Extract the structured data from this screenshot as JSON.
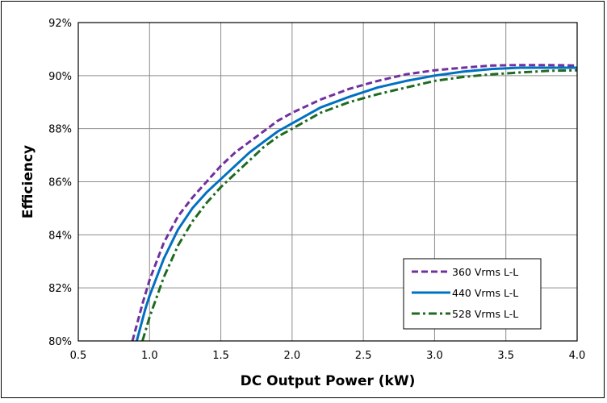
{
  "chart_data": {
    "type": "line",
    "title": "",
    "xlabel": "DC Output Power (kW)",
    "ylabel": "Efficiency",
    "xlim": [
      0.5,
      4.0
    ],
    "ylim": [
      80,
      92
    ],
    "x_ticks": [
      "0.5",
      "1.0",
      "1.5",
      "2.0",
      "2.5",
      "3.0",
      "3.5",
      "4.0"
    ],
    "y_ticks": [
      "80%",
      "82%",
      "84%",
      "86%",
      "88%",
      "90%",
      "92%"
    ],
    "grid": true,
    "legend_position": "bottom-right",
    "series": [
      {
        "name": "360 Vrms L-L",
        "color": "#7030A0",
        "dash": "dashed",
        "points": [
          [
            0.88,
            80.0
          ],
          [
            0.95,
            81.4
          ],
          [
            1.0,
            82.3
          ],
          [
            1.1,
            83.7
          ],
          [
            1.2,
            84.7
          ],
          [
            1.3,
            85.4
          ],
          [
            1.4,
            86.0
          ],
          [
            1.5,
            86.6
          ],
          [
            1.6,
            87.1
          ],
          [
            1.7,
            87.5
          ],
          [
            1.8,
            87.9
          ],
          [
            1.9,
            88.3
          ],
          [
            2.0,
            88.6
          ],
          [
            2.2,
            89.1
          ],
          [
            2.4,
            89.5
          ],
          [
            2.6,
            89.8
          ],
          [
            2.8,
            90.05
          ],
          [
            3.0,
            90.2
          ],
          [
            3.2,
            90.3
          ],
          [
            3.4,
            90.38
          ],
          [
            3.6,
            90.4
          ],
          [
            3.8,
            90.4
          ],
          [
            4.0,
            90.38
          ]
        ]
      },
      {
        "name": "440 Vrms L-L",
        "color": "#0070C0",
        "dash": "solid",
        "points": [
          [
            0.91,
            80.0
          ],
          [
            0.97,
            81.2
          ],
          [
            1.0,
            81.7
          ],
          [
            1.1,
            83.1
          ],
          [
            1.2,
            84.2
          ],
          [
            1.3,
            85.0
          ],
          [
            1.4,
            85.6
          ],
          [
            1.5,
            86.1
          ],
          [
            1.6,
            86.6
          ],
          [
            1.7,
            87.1
          ],
          [
            1.8,
            87.5
          ],
          [
            1.9,
            87.9
          ],
          [
            2.0,
            88.2
          ],
          [
            2.2,
            88.8
          ],
          [
            2.4,
            89.2
          ],
          [
            2.6,
            89.55
          ],
          [
            2.8,
            89.8
          ],
          [
            3.0,
            90.0
          ],
          [
            3.2,
            90.15
          ],
          [
            3.4,
            90.25
          ],
          [
            3.6,
            90.3
          ],
          [
            3.8,
            90.3
          ],
          [
            4.0,
            90.3
          ]
        ]
      },
      {
        "name": "528 Vrms L-L",
        "color": "#1E6B1E",
        "dash": "dashdot",
        "points": [
          [
            0.95,
            80.0
          ],
          [
            1.0,
            80.9
          ],
          [
            1.1,
            82.4
          ],
          [
            1.2,
            83.6
          ],
          [
            1.3,
            84.5
          ],
          [
            1.4,
            85.2
          ],
          [
            1.5,
            85.8
          ],
          [
            1.6,
            86.3
          ],
          [
            1.7,
            86.8
          ],
          [
            1.8,
            87.3
          ],
          [
            1.9,
            87.7
          ],
          [
            2.0,
            88.0
          ],
          [
            2.2,
            88.6
          ],
          [
            2.4,
            89.0
          ],
          [
            2.6,
            89.3
          ],
          [
            2.8,
            89.55
          ],
          [
            3.0,
            89.8
          ],
          [
            3.2,
            89.95
          ],
          [
            3.4,
            90.05
          ],
          [
            3.6,
            90.12
          ],
          [
            3.8,
            90.18
          ],
          [
            4.0,
            90.2
          ]
        ]
      }
    ]
  }
}
